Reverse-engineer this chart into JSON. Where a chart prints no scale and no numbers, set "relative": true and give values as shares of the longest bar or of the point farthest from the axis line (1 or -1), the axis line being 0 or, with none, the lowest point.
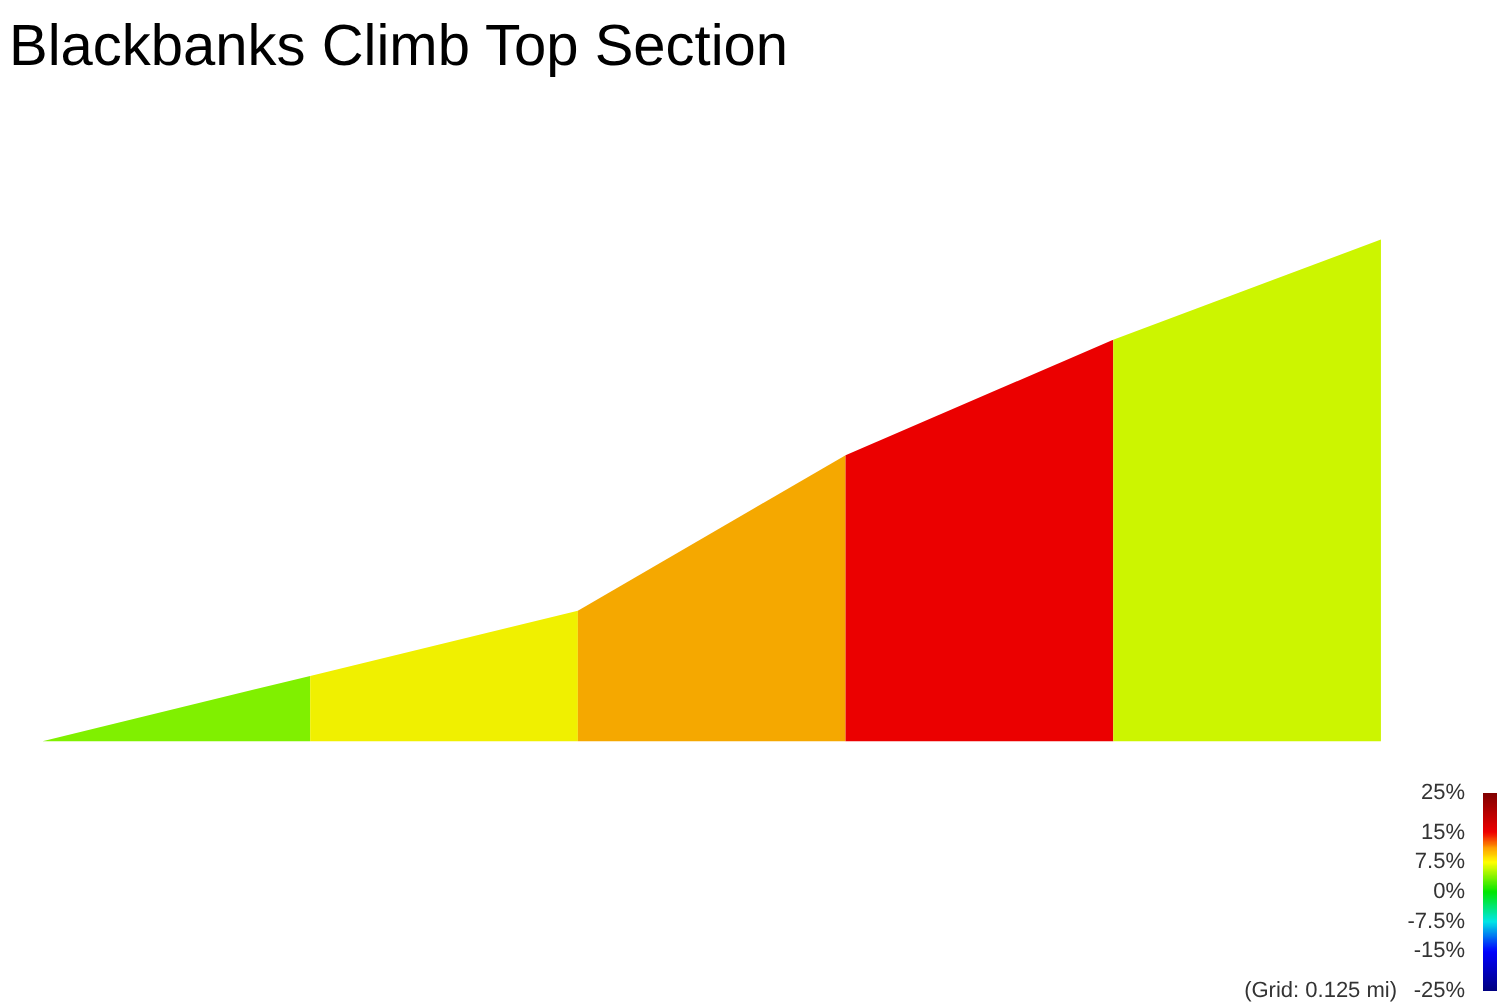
{
  "chart_data": {
    "type": "area",
    "title": "Blackbanks Climb Top Section",
    "relative": true,
    "categories": [
      null,
      null,
      null,
      null,
      null,
      null
    ],
    "series": [
      {
        "color": "#80f000",
        "values": [
          0,
          0.13,
          null,
          null,
          null,
          null
        ]
      },
      {
        "color": "#f0f000",
        "values": [
          null,
          0.13,
          0.26,
          null,
          null,
          null
        ]
      },
      {
        "color": "#f5a800",
        "values": [
          null,
          null,
          0.26,
          0.57,
          null,
          null
        ]
      },
      {
        "color": "#eb0000",
        "values": [
          null,
          null,
          null,
          0.57,
          0.8,
          null
        ]
      },
      {
        "color": "#ccf500",
        "values": [
          null,
          null,
          null,
          null,
          0.8,
          1
        ]
      }
    ],
    "clim": [
      -25,
      25
    ],
    "cticks": [
      {
        "value": 25,
        "label": "25%"
      },
      {
        "value": 15,
        "label": "15%"
      },
      {
        "value": 7.5,
        "label": "7.5%"
      },
      {
        "value": 0,
        "label": "0%"
      },
      {
        "value": -7.5,
        "label": "-7.5%"
      },
      {
        "value": -15,
        "label": "-15%"
      },
      {
        "value": -25,
        "label": "-25%"
      }
    ],
    "annotations": [
      "(Grid: 0.125 mi)"
    ]
  }
}
